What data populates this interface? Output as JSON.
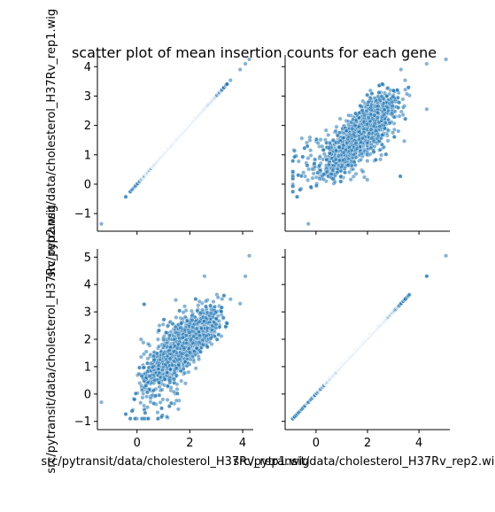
{
  "figure": {
    "title": "scatter plot of mean insertion counts for each gene"
  },
  "chart_data": [
    {
      "type": "scatter",
      "panel": "top-left",
      "xlabel": "",
      "ylabel": "src/pytransit/data/cholesterol_H37Rv_rep1.wig",
      "x_var": "rep1",
      "y_var": "rep1",
      "xlim": [
        -1.5,
        4.4
      ],
      "ylim": [
        -1.6,
        4.4
      ],
      "xticks": [],
      "yticks": [
        -1,
        0,
        1,
        2,
        3,
        4
      ],
      "relation": "identity",
      "x_range": [
        -1.35,
        4.25
      ],
      "grid": false
    },
    {
      "type": "scatter",
      "panel": "top-right",
      "xlabel": "",
      "ylabel": "",
      "x_var": "rep2",
      "y_var": "rep1",
      "xlim": [
        -1.2,
        5.2
      ],
      "ylim": [
        -1.6,
        4.4
      ],
      "xticks": [],
      "yticks": [],
      "relation": "correlated",
      "grid": false
    },
    {
      "type": "scatter",
      "panel": "bottom-left",
      "xlabel": "src/pytransit/data/cholesterol_H37Rv_rep1.wig",
      "ylabel": "src/pytransit/data/cholesterol_H37Rv_rep2.wig",
      "x_var": "rep1",
      "y_var": "rep2",
      "xlim": [
        -1.5,
        4.4
      ],
      "ylim": [
        -1.3,
        5.3
      ],
      "xticks": [
        0,
        2,
        4
      ],
      "yticks": [
        -1,
        0,
        1,
        2,
        3,
        4,
        5
      ],
      "relation": "correlated",
      "grid": false
    },
    {
      "type": "scatter",
      "panel": "bottom-right",
      "xlabel": "src/pytransit/data/cholesterol_H37Rv_rep2.wig",
      "ylabel": "",
      "x_var": "rep2",
      "y_var": "rep2",
      "xlim": [
        -1.2,
        5.2
      ],
      "ylim": [
        -1.3,
        5.3
      ],
      "xticks": [
        0,
        2,
        4
      ],
      "yticks": [],
      "relation": "identity",
      "x_range": [
        -0.95,
        5.05
      ],
      "grid": false
    }
  ],
  "colors": {
    "points": "#1f77b4",
    "point_edge": "#ffffff",
    "axes": "#000000"
  }
}
